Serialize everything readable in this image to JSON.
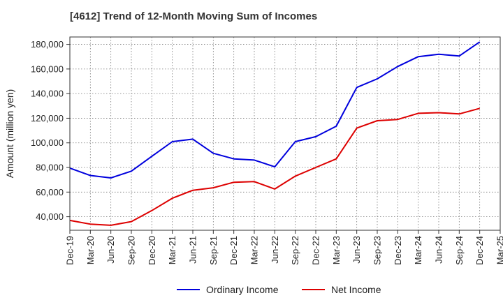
{
  "chart_data": {
    "type": "line",
    "title": "[4612]  Trend of 12-Month Moving Sum of Incomes",
    "xlabel": "",
    "ylabel": "Amount (million yen)",
    "ylim": [
      29000,
      186000
    ],
    "yticks": [
      40000,
      60000,
      80000,
      100000,
      120000,
      140000,
      160000,
      180000
    ],
    "ytick_labels": [
      "40,000",
      "60,000",
      "80,000",
      "100,000",
      "120,000",
      "140,000",
      "160,000",
      "180,000"
    ],
    "categories": [
      "Dec-19",
      "Mar-20",
      "Jun-20",
      "Sep-20",
      "Dec-20",
      "Mar-21",
      "Jun-21",
      "Sep-21",
      "Dec-21",
      "Mar-22",
      "Jun-22",
      "Sep-22",
      "Dec-22",
      "Mar-23",
      "Jun-23",
      "Sep-23",
      "Dec-23",
      "Mar-24",
      "Jun-24",
      "Sep-24",
      "Dec-24",
      "Mar-25"
    ],
    "grid": true,
    "legend_position": "bottom",
    "series": [
      {
        "name": "Ordinary Income",
        "color": "#0000dd",
        "values": [
          79500,
          73500,
          71500,
          77000,
          89000,
          101000,
          103000,
          91500,
          87000,
          86000,
          80500,
          101000,
          105000,
          113500,
          145000,
          152000,
          162000,
          170000,
          172000,
          170500,
          182000,
          null
        ]
      },
      {
        "name": "Net Income",
        "color": "#dd0000",
        "values": [
          37000,
          34000,
          33000,
          36000,
          45000,
          55000,
          61500,
          63500,
          68000,
          68500,
          62500,
          73000,
          80000,
          87000,
          112000,
          118000,
          119000,
          124000,
          124500,
          123500,
          128000,
          null
        ]
      }
    ]
  }
}
